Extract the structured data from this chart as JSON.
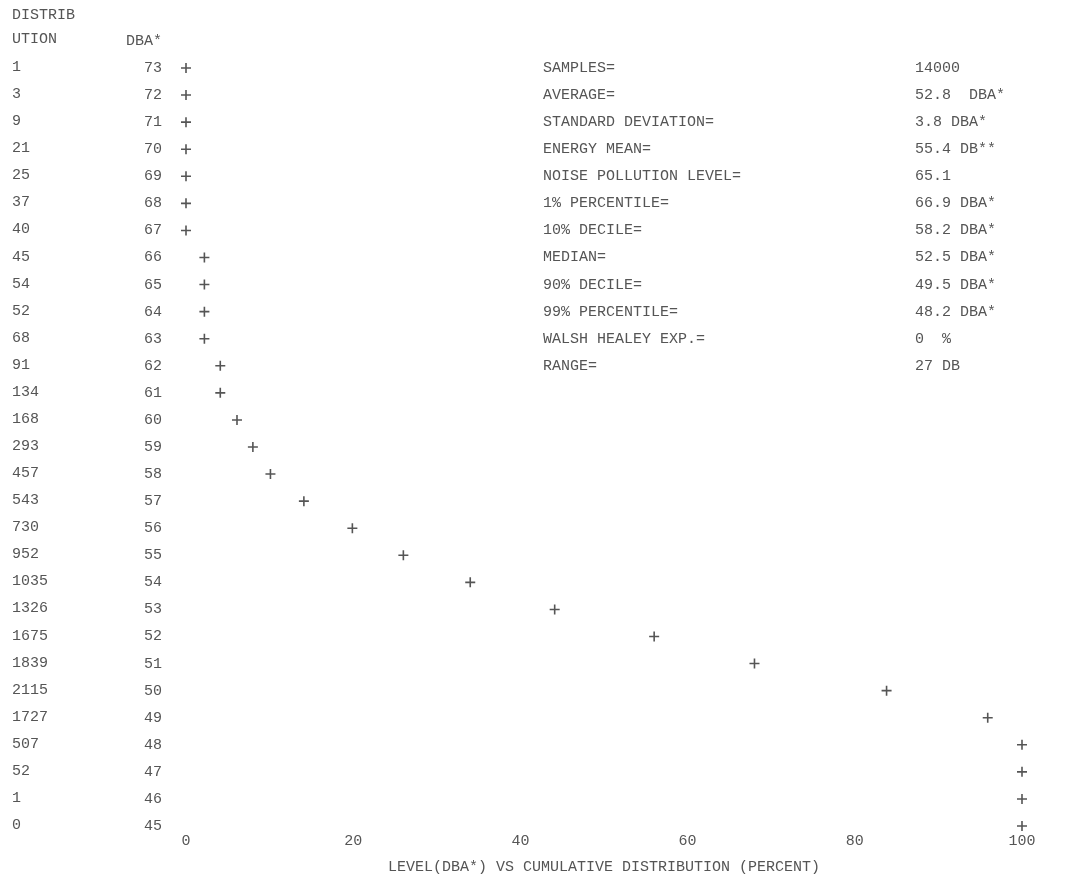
{
  "chart_data": [
    {
      "type": "other",
      "title": "DISTRIBUTION",
      "annotations": [
        "1",
        "3",
        "9",
        "21",
        "25",
        "37",
        "40",
        "45",
        "54",
        "52",
        "68",
        "91",
        "134",
        "168",
        "293",
        "457",
        "543",
        "730",
        "952",
        "1035",
        "1326",
        "1675",
        "1839",
        "2115",
        "1727",
        "507",
        "52",
        "1",
        "0"
      ]
    },
    {
      "type": "scatter",
      "xlabel": "LEVEL(DBA*) VS CUMULATIVE DISTRIBUTION (PERCENT)",
      "ylabel": "DBA*",
      "x": [
        0,
        0,
        0,
        0,
        0,
        0,
        0,
        2.2,
        2.2,
        2.2,
        2.2,
        4.1,
        4.1,
        6.1,
        8.0,
        10.1,
        14.1,
        19.9,
        26.0,
        34.0,
        44.1,
        56.0,
        68.0,
        83.8,
        95.9,
        100,
        100,
        100,
        100
      ],
      "series": [
        {
          "color": "#555555",
          "values": [
            73,
            72,
            71,
            70,
            69,
            68,
            67,
            66,
            65,
            64,
            63,
            62,
            61,
            60,
            59,
            58,
            57,
            56,
            55,
            54,
            53,
            52,
            51,
            50,
            49,
            48,
            47,
            46,
            45
          ]
        }
      ],
      "xlim": [
        0,
        100
      ],
      "xticks": [
        0,
        20,
        40,
        60,
        80,
        100
      ],
      "ylim": [
        45,
        73
      ],
      "yticks": [
        45,
        46,
        47,
        48,
        49,
        50,
        51,
        52,
        53,
        54,
        55,
        56,
        57,
        58,
        59,
        60,
        61,
        62,
        63,
        64,
        65,
        66,
        67,
        68,
        69,
        70,
        71,
        72,
        73
      ],
      "annotations": [
        "SAMPLES=",
        "14000",
        "AVERAGE=",
        "52.8  DBA*",
        "STANDARD DEVIATION=",
        "3.8 DBA*",
        "ENERGY MEAN=",
        "55.4 DB**",
        "NOISE POLLUTION LEVEL=",
        "65.1",
        "1% PERCENTILE=",
        "66.9 DBA*",
        "10% DECILE=",
        "58.2 DBA*",
        "MEDIAN=",
        "52.5 DBA*",
        "90% DECILE=",
        "49.5 DBA*",
        "99% PERCENTILE=",
        "48.2 DBA*",
        "WALSH HEALEY EXP.=",
        "0  %",
        "RANGE=",
        "27 DB"
      ],
      "grid": false,
      "legend": false,
      "marker": "cross"
    }
  ]
}
